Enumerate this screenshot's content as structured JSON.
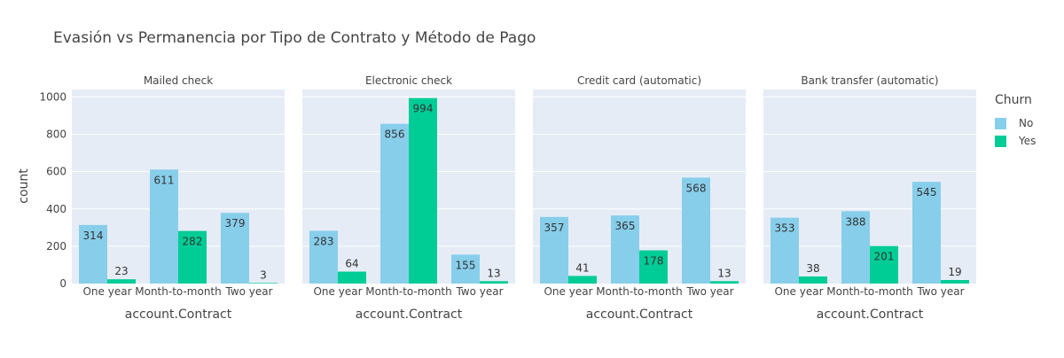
{
  "chart_data": {
    "type": "bar",
    "title": "Evasión vs Permanencia por Tipo de Contrato y Método de Pago",
    "ylabel": "count",
    "xlabel": "account.Contract",
    "ylim": [
      0,
      1040
    ],
    "yticks": [
      0,
      200,
      400,
      600,
      800,
      1000
    ],
    "grid": true,
    "legend_placement": "top-right",
    "legend_title": "Churn",
    "categories": [
      "One year",
      "Month-to-month",
      "Two year"
    ],
    "series": [
      {
        "name": "No",
        "color": "#87CEEB"
      },
      {
        "name": "Yes",
        "color": "#00CC96"
      }
    ],
    "facets": [
      {
        "title": "Mailed check",
        "values": {
          "No": [
            314,
            611,
            379
          ],
          "Yes": [
            23,
            282,
            3
          ]
        }
      },
      {
        "title": "Electronic check",
        "values": {
          "No": [
            283,
            856,
            155
          ],
          "Yes": [
            64,
            994,
            13
          ]
        }
      },
      {
        "title": "Credit card (automatic)",
        "values": {
          "No": [
            357,
            365,
            568
          ],
          "Yes": [
            41,
            178,
            13
          ]
        }
      },
      {
        "title": "Bank transfer (automatic)",
        "values": {
          "No": [
            353,
            388,
            545
          ],
          "Yes": [
            38,
            201,
            19
          ]
        }
      }
    ]
  }
}
